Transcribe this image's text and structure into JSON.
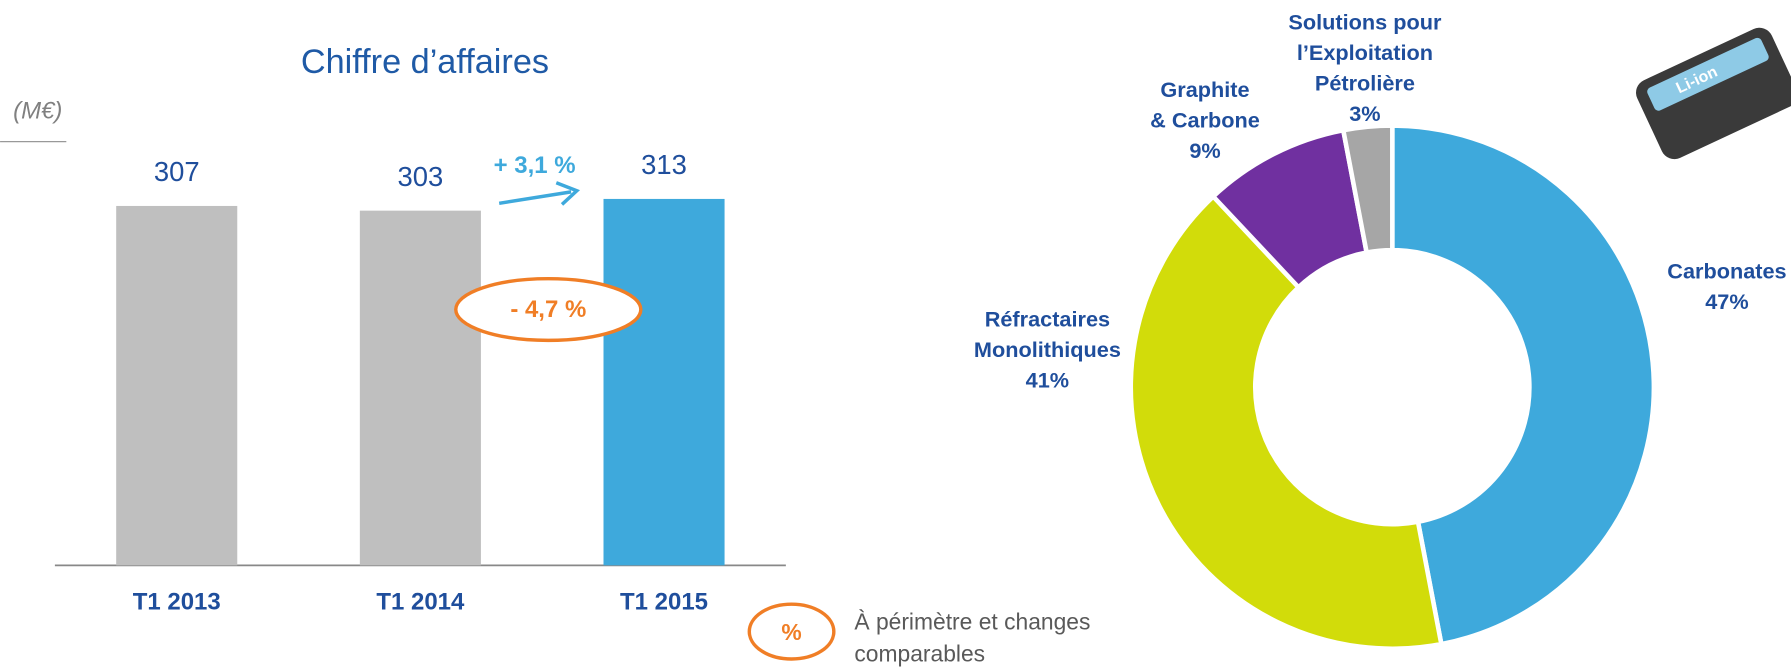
{
  "chart_data": [
    {
      "type": "bar",
      "title": "Chiffre d’affaires",
      "y_label": "(M€)",
      "categories": [
        "T1 2013",
        "T1 2014",
        "T1 2015"
      ],
      "values": [
        307,
        303,
        313
      ],
      "colors": [
        "#bfbfbf",
        "#bfbfbf",
        "#3ea9dc"
      ],
      "ylim": [
        0,
        400
      ],
      "growth_label": "+ 3,1 %",
      "organic_label": "- 4,7 %",
      "note_symbol": "%",
      "note": [
        "À périmètre et changes",
        "comparables"
      ]
    },
    {
      "type": "donut",
      "categories": [
        [
          "Carbonates"
        ],
        [
          "Réfractaires",
          "Monolithiques"
        ],
        [
          "Graphite",
          "& Carbone"
        ],
        [
          "Solutions pour",
          "l’Exploitation",
          "Pétrolière"
        ]
      ],
      "values": [
        47,
        41,
        9,
        3
      ],
      "value_labels": [
        "47%",
        "41%",
        "9%",
        "3%"
      ],
      "colors": [
        "#3ea9dc",
        "#d2dc0a",
        "#7030a0",
        "#a6a6a6"
      ],
      "image_label": "Li-ion"
    }
  ]
}
